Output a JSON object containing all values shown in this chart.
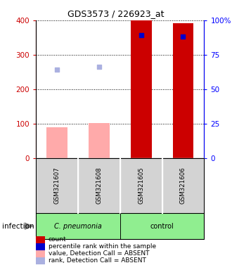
{
  "title": "GDS3573 / 226923_at",
  "samples": [
    "GSM321607",
    "GSM321608",
    "GSM321605",
    "GSM321606"
  ],
  "bar_count_values": [
    90,
    101,
    400,
    391
  ],
  "bar_count_colors": [
    "#ffaaaa",
    "#ffaaaa",
    "#cc0000",
    "#cc0000"
  ],
  "scatter_rank_present": [
    null,
    null,
    89,
    88
  ],
  "scatter_rank_absent": [
    64,
    66,
    null,
    null
  ],
  "scatter_rank_absent_color": "#aab0e0",
  "scatter_rank_present_color": "#0000cc",
  "ylim_left": [
    0,
    400
  ],
  "ylim_right": [
    0,
    100
  ],
  "yticks_left": [
    0,
    100,
    200,
    300,
    400
  ],
  "yticks_right": [
    0,
    25,
    50,
    75,
    100
  ],
  "ytick_right_labels": [
    "0",
    "25",
    "50",
    "75",
    "100%"
  ],
  "legend_items": [
    {
      "color": "#cc0000",
      "label": "count"
    },
    {
      "color": "#0000cc",
      "label": "percentile rank within the sample"
    },
    {
      "color": "#ffaaaa",
      "label": "value, Detection Call = ABSENT"
    },
    {
      "color": "#aab0e0",
      "label": "rank, Detection Call = ABSENT"
    }
  ],
  "left_tick_color": "#cc0000",
  "right_tick_color": "#0000ff",
  "bar_width": 0.5,
  "group1_label": "C. pneumonia",
  "group2_label": "control",
  "infection_label": "infection"
}
